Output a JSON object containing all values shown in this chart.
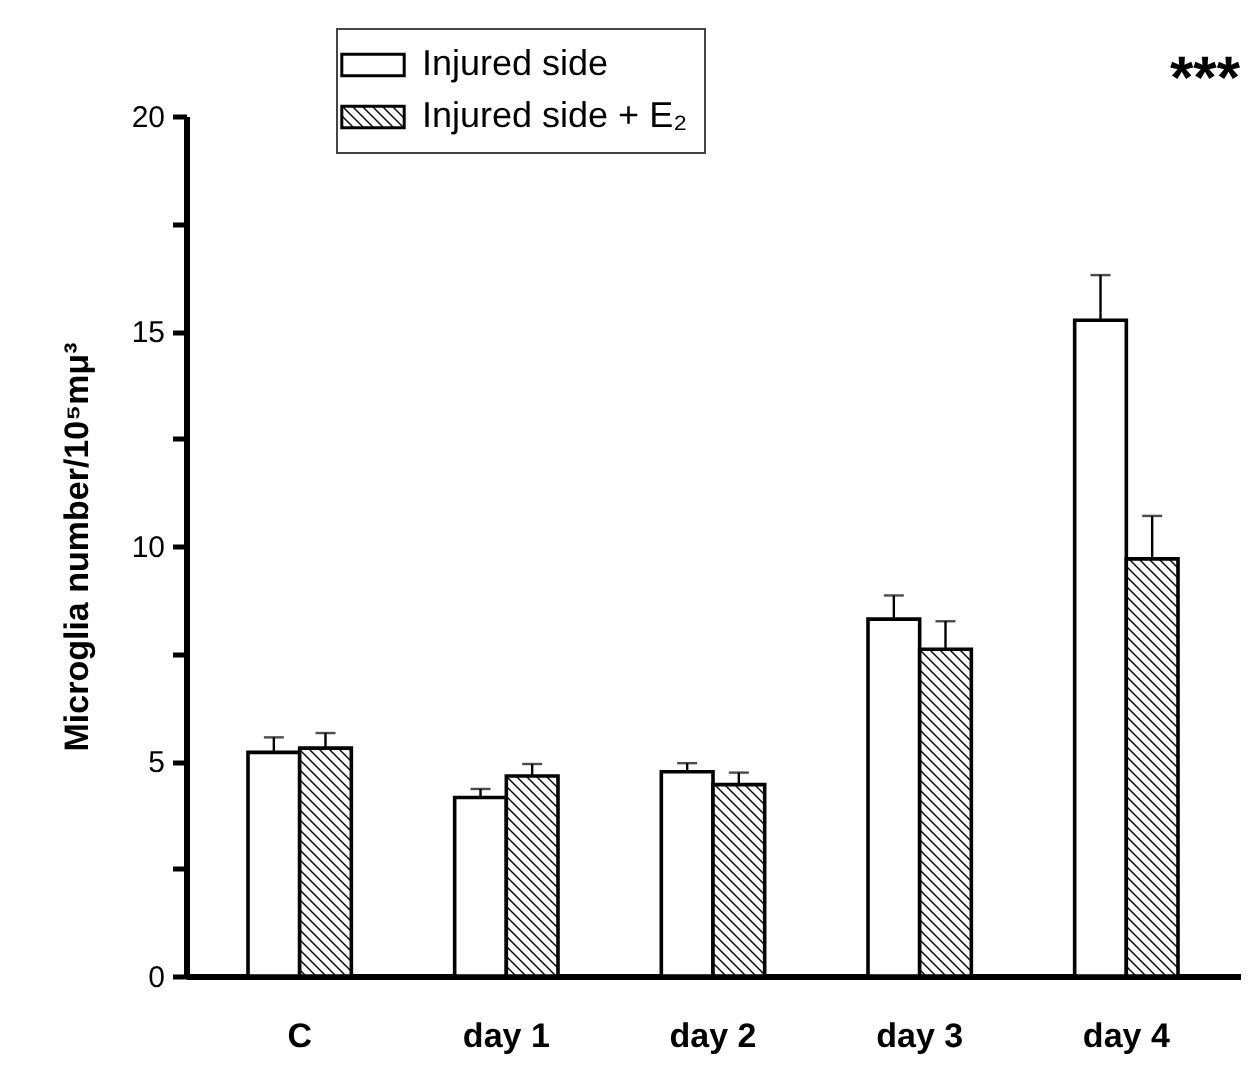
{
  "chart_data": {
    "type": "bar",
    "ylabel": "Microglia number/10⁵mμ³",
    "categories": [
      "C",
      "day 1",
      "day 2",
      "day 3",
      "day 4"
    ],
    "series": [
      {
        "name": "Injured side",
        "color": "#ffffff",
        "values": [
          5.2,
          4.15,
          4.75,
          8.3,
          15.25
        ],
        "errors": [
          [
            5.2,
            5.55
          ],
          [
            4.15,
            4.35
          ],
          [
            4.75,
            4.95
          ],
          [
            8.3,
            8.85
          ],
          [
            15.25,
            16.3
          ]
        ]
      },
      {
        "name": "Injured side + E₂",
        "color": "#000000",
        "values": [
          5.3,
          4.65,
          4.45,
          7.6,
          9.7
        ],
        "errors": [
          [
            5.3,
            5.65
          ],
          [
            4.65,
            4.93
          ],
          [
            4.45,
            4.73
          ],
          [
            7.6,
            8.25
          ],
          [
            9.7,
            10.7
          ]
        ]
      }
    ],
    "ylim": [
      0,
      20
    ],
    "yticks": [
      0,
      {
        "value": 2.5,
        "label": null
      },
      5,
      {
        "value": 7.5,
        "label": null
      },
      10,
      {
        "value": 12.5,
        "label": null
      },
      15,
      {
        "value": 17.5,
        "label": null
      },
      20
    ],
    "legend": "top",
    "grid": false,
    "annotations": [
      "***"
    ]
  }
}
